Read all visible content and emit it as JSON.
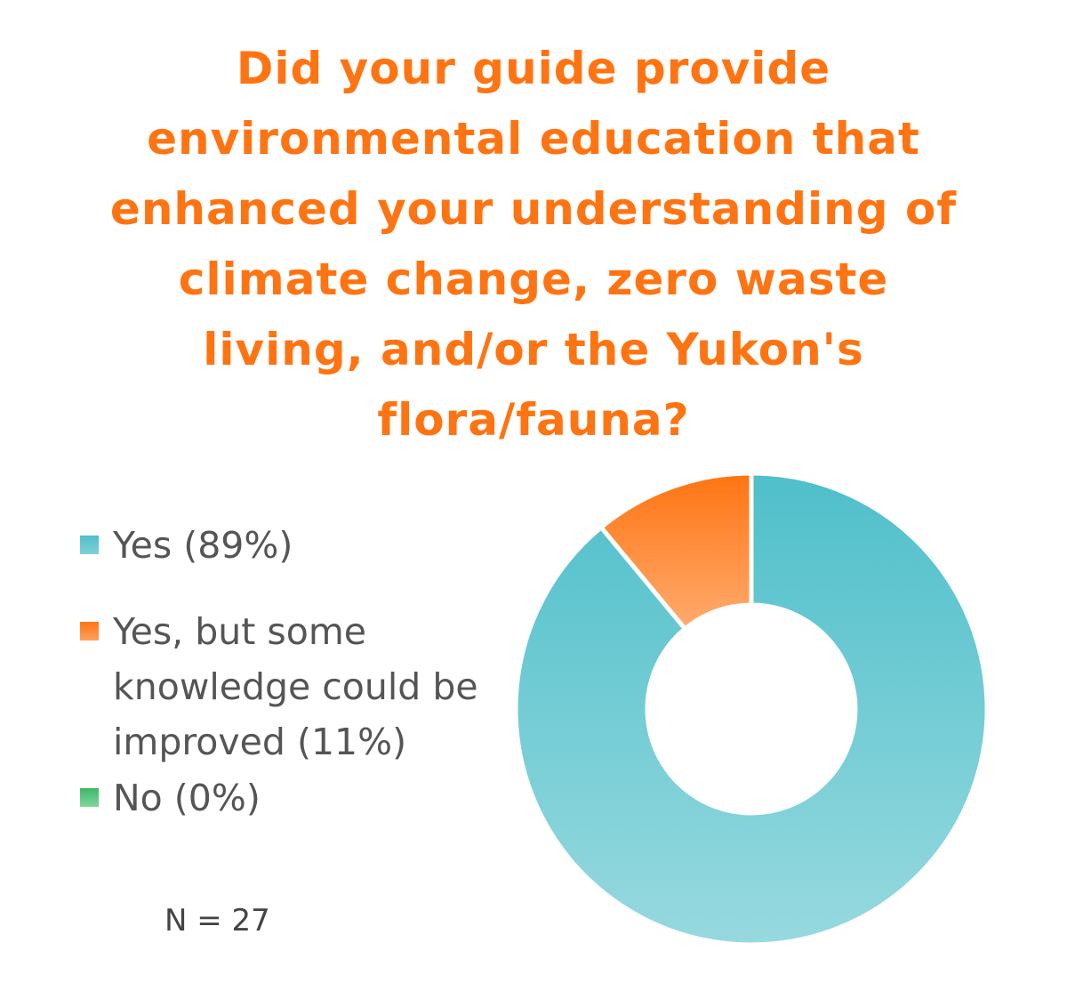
{
  "chart_data": {
    "type": "pie",
    "title_lines": [
      "Did your guide provide",
      "environmental education that",
      "enhanced your understanding of",
      "climate change, zero waste",
      "living, and/or the Yukon's",
      "flora/fauna?"
    ],
    "categories": [
      "Yes (89%)",
      "Yes, but some knowledge could be improved (11%)",
      "No (0%)"
    ],
    "values": [
      89,
      11,
      0
    ],
    "colors": [
      "#5cc3cd",
      "#ff8a33",
      "#5cc77e"
    ],
    "donut": true,
    "legend_position": "left",
    "annotation": "N = 27"
  }
}
